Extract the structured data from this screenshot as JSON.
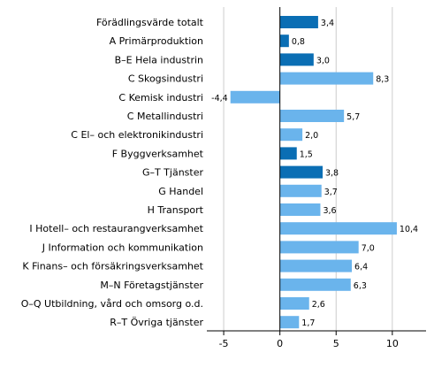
{
  "chart_data": {
    "type": "bar",
    "orientation": "horizontal",
    "title": "",
    "xlabel": "",
    "ylabel": "",
    "xlim": [
      -6.5,
      13
    ],
    "grid": true,
    "legend": "none",
    "xticks": [
      {
        "value": -5,
        "label": "-5"
      },
      {
        "value": 0,
        "label": "0"
      },
      {
        "value": 5,
        "label": "5"
      },
      {
        "value": 10,
        "label": "10"
      }
    ],
    "colors": {
      "highlight": "#0a6eb4",
      "normal": "#6ab4ec",
      "grid": "#cccccc",
      "axis": "#000000"
    },
    "categories": [
      {
        "label": "Förädlingsvärde totalt",
        "value": 3.4,
        "value_label": "3,4",
        "highlight": true
      },
      {
        "label": "A Primärproduktion",
        "value": 0.8,
        "value_label": "0,8",
        "highlight": true
      },
      {
        "label": "B–E Hela industrin",
        "value": 3.0,
        "value_label": "3,0",
        "highlight": true
      },
      {
        "label": "C Skogsindustri",
        "value": 8.3,
        "value_label": "8,3",
        "highlight": false
      },
      {
        "label": "C Kemisk industri",
        "value": -4.4,
        "value_label": "-4,4",
        "highlight": false
      },
      {
        "label": "C Metallindustri",
        "value": 5.7,
        "value_label": "5,7",
        "highlight": false
      },
      {
        "label": "C El– och elektronikindustri",
        "value": 2.0,
        "value_label": "2,0",
        "highlight": false
      },
      {
        "label": "F Byggverksamhet",
        "value": 1.5,
        "value_label": "1,5",
        "highlight": true
      },
      {
        "label": "G–T Tjänster",
        "value": 3.8,
        "value_label": "3,8",
        "highlight": true
      },
      {
        "label": "G Handel",
        "value": 3.7,
        "value_label": "3,7",
        "highlight": false
      },
      {
        "label": "H Transport",
        "value": 3.6,
        "value_label": "3,6",
        "highlight": false
      },
      {
        "label": "I Hotell– och restaurangverksamhet",
        "value": 10.4,
        "value_label": "10,4",
        "highlight": false
      },
      {
        "label": "J Information och kommunikation",
        "value": 7.0,
        "value_label": "7,0",
        "highlight": false
      },
      {
        "label": "K Finans– och försäkringsverksamhet",
        "value": 6.4,
        "value_label": "6,4",
        "highlight": false
      },
      {
        "label": "M–N Företagstjänster",
        "value": 6.3,
        "value_label": "6,3",
        "highlight": false
      },
      {
        "label": "O–Q Utbildning, vård och omsorg o.d.",
        "value": 2.6,
        "value_label": "2,6",
        "highlight": false
      },
      {
        "label": "R–T Övriga tjänster",
        "value": 1.7,
        "value_label": "1,7",
        "highlight": false
      }
    ]
  }
}
